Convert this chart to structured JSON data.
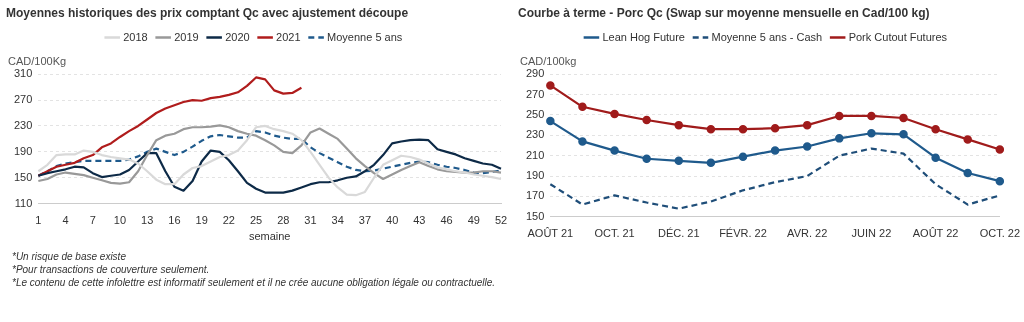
{
  "chart_data": [
    {
      "type": "line",
      "title": "Moyennes historiques des prix comptant Qc avec ajustement découpe",
      "ylabel": "CAD/100Kg",
      "xlabel": "semaine",
      "categories": [
        "1",
        null,
        null,
        "4",
        null,
        null,
        "7",
        null,
        null,
        "10",
        null,
        null,
        "13",
        null,
        null,
        "16",
        null,
        null,
        "19",
        null,
        null,
        "22",
        null,
        null,
        "25",
        null,
        null,
        "28",
        null,
        null,
        "31",
        null,
        null,
        "34",
        null,
        null,
        "37",
        null,
        null,
        "40",
        null,
        null,
        "43",
        null,
        null,
        "46",
        null,
        null,
        "49",
        null,
        null,
        "52"
      ],
      "series": [
        {
          "name": "2018",
          "color": "#d9d9d9",
          "values": [
            160,
            170,
            185,
            186,
            186,
            192,
            190,
            185,
            182,
            180,
            178,
            172,
            160,
            147,
            140,
            140,
            155,
            165,
            168,
            175,
            182,
            185,
            192,
            208,
            228,
            230,
            225,
            222,
            218,
            208,
            190,
            170,
            150,
            135,
            124,
            123,
            128,
            150,
            170,
            177,
            184,
            182,
            178,
            172,
            166,
            163,
            160,
            158,
            155,
            153,
            151,
            148
          ]
        },
        {
          "name": "2019",
          "color": "#999999",
          "values": [
            145,
            148,
            155,
            158,
            156,
            154,
            150,
            146,
            142,
            141,
            143,
            160,
            185,
            208,
            215,
            218,
            225,
            228,
            228,
            229,
            231,
            228,
            222,
            218,
            215,
            208,
            200,
            190,
            188,
            200,
            220,
            226,
            218,
            210,
            195,
            180,
            168,
            157,
            148,
            155,
            162,
            168,
            174,
            168,
            163,
            160,
            159,
            158,
            158,
            160,
            160,
            158
          ]
        },
        {
          "name": "2020",
          "color": "#0d2a47",
          "values": [
            153,
            157,
            160,
            163,
            167,
            166,
            157,
            151,
            153,
            155,
            162,
            175,
            188,
            188,
            160,
            136,
            130,
            145,
            175,
            192,
            190,
            177,
            160,
            142,
            133,
            127,
            127,
            127,
            130,
            135,
            140,
            143,
            143,
            146,
            150,
            152,
            160,
            170,
            185,
            203,
            206,
            208,
            209,
            208,
            194,
            190,
            186,
            180,
            176,
            172,
            170,
            164
          ]
        },
        {
          "name": "2021",
          "color": "#b01c1c",
          "values": [
            153,
            160,
            167,
            170,
            173,
            180,
            185,
            197,
            203,
            213,
            222,
            230,
            240,
            250,
            257,
            262,
            267,
            270,
            269,
            273,
            275,
            278,
            282,
            292,
            305,
            302,
            285,
            280,
            281,
            289,
            null,
            null,
            null,
            null,
            null,
            null,
            null,
            null,
            null,
            null,
            null,
            null,
            null,
            null,
            null,
            null,
            null,
            null,
            null,
            null,
            null,
            null
          ]
        },
        {
          "name": "Moyenne 5 ans",
          "color": "#1f5a8c",
          "line_style": "dashed",
          "values": [
            153,
            160,
            168,
            172,
            174,
            176,
            176,
            176,
            176,
            176,
            178,
            183,
            190,
            195,
            190,
            185,
            190,
            198,
            207,
            214,
            216,
            214,
            212,
            212,
            222,
            220,
            215,
            212,
            210,
            210,
            197,
            188,
            181,
            174,
            167,
            162,
            160,
            161,
            164,
            167,
            170,
            173,
            175,
            174,
            170,
            167,
            165,
            162,
            158,
            157,
            159,
            161
          ]
        }
      ],
      "ylim": [
        110,
        310
      ],
      "yticks": [
        110,
        150,
        190,
        230,
        270,
        310
      ],
      "grid": "y",
      "legend": "top",
      "marker": "none",
      "annotations": [
        "*Un risque de base existe",
        "*Pour transactions de couverture seulement.",
        "*Le contenu de cette infolettre est informatif seulement et il ne crée aucune obligation légale ou contractuelle."
      ]
    },
    {
      "type": "line",
      "title": "Courbe à terme - Porc Qc (Swap sur moyenne mensuelle en Cad/100 kg)",
      "ylabel": "CAD/100kg",
      "categories": [
        "AOÛT 21",
        null,
        "OCT. 21",
        null,
        "DÉC. 21",
        null,
        "FÉVR. 22",
        null,
        "AVR. 22",
        null,
        "JUIN 22",
        null,
        "AOÛT 22",
        null,
        "OCT. 22"
      ],
      "series": [
        {
          "name": "Lean Hog Future",
          "color": "#1f5a8c",
          "marker": "circle",
          "values": [
            244,
            224,
            215,
            207,
            205,
            203,
            209,
            215,
            219,
            227,
            232,
            231,
            208,
            193,
            185
          ]
        },
        {
          "name": "Moyenne 5 ans - Cash",
          "color": "#1f4e79",
          "line_style": "dashed",
          "marker": "none",
          "values": [
            182,
            162,
            171,
            164,
            158,
            165,
            176,
            184,
            190,
            210,
            217,
            212,
            182,
            162,
            171
          ]
        },
        {
          "name": "Pork Cutout Futures",
          "color": "#a01b1b",
          "marker": "circle",
          "values": [
            279,
            258,
            251,
            245,
            240,
            236,
            236,
            237,
            240,
            249,
            249,
            247,
            236,
            226,
            216
          ]
        }
      ],
      "ylim": [
        150,
        290
      ],
      "yticks": [
        150,
        170,
        190,
        210,
        230,
        250,
        270,
        290
      ],
      "grid": "y",
      "legend": "top"
    }
  ]
}
